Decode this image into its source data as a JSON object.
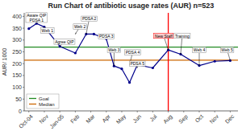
{
  "chart_data": {
    "type": "line",
    "title": "Run Chart of antibiotic usage rates (AUR) n=523",
    "y_label": "AUR/ 1000",
    "x": [
      0,
      0.5,
      1,
      2,
      3,
      3.7,
      4.2,
      5,
      5.5,
      6,
      6.5,
      7,
      8,
      9,
      9.8,
      11,
      12,
      13
    ],
    "values": [
      348,
      370,
      355,
      273,
      245,
      325,
      325,
      305,
      190,
      178,
      120,
      195,
      182,
      258,
      240,
      192,
      210,
      213
    ],
    "color": "#00008B",
    "marker": "circle",
    "xlim": [
      -0.3,
      13.5
    ],
    "xticks": [
      {
        "value": 0,
        "label": "Oct-04"
      },
      {
        "value": 1,
        "label": "Nov"
      },
      {
        "value": 2,
        "label": "Jan-05"
      },
      {
        "value": 3,
        "label": "Feb"
      },
      {
        "value": 4,
        "label": "Mar"
      },
      {
        "value": 5,
        "label": "Apr"
      },
      {
        "value": 6,
        "label": "May"
      },
      {
        "value": 7,
        "label": "Jun"
      },
      {
        "value": 8,
        "label": "Jul"
      },
      {
        "value": 9,
        "label": "Aug"
      },
      {
        "value": 10,
        "label": "Sep"
      },
      {
        "value": 11,
        "label": "Oct"
      },
      {
        "value": 12,
        "label": "Nov"
      },
      {
        "value": 13,
        "label": "Dec"
      }
    ],
    "ylim": [
      0,
      415
    ],
    "yticks": [
      0,
      50,
      100,
      150,
      200,
      250,
      300,
      350,
      400
    ],
    "grid": false,
    "legend": "lower left",
    "reference_lines": [
      {
        "name": "Goal",
        "value": 270,
        "color": "#228B22"
      },
      {
        "name": "Median",
        "value": 215,
        "color": "#CC6600"
      }
    ],
    "vertical_lines": [
      {
        "x": 9.0,
        "color": "red"
      }
    ],
    "annotations": [
      {
        "text": "Aware QIP\nPDSA 1",
        "text_x": 0.5,
        "text_y": 395,
        "x": 0.5,
        "y": 370
      },
      {
        "text": "Web 1",
        "text_x": 1.2,
        "text_y": 340,
        "x": 1.0,
        "y": 355
      },
      {
        "text": "Agree QIP",
        "text_x": 2.3,
        "text_y": 293,
        "x": 2.0,
        "y": 273
      },
      {
        "text": "Web 2",
        "text_x": 3.3,
        "text_y": 357,
        "x": 3.0,
        "y": 325
      },
      {
        "text": "PDSA 2",
        "text_x": 3.9,
        "text_y": 390,
        "x": 3.7,
        "y": 325
      },
      {
        "text": "PDSA 3",
        "text_x": 5.0,
        "text_y": 315,
        "x": 5.0,
        "y": 305
      },
      {
        "text": "Web 3",
        "text_x": 5.5,
        "text_y": 258,
        "x": 5.5,
        "y": 190
      },
      {
        "text": "PDSA 4",
        "text_x": 6.7,
        "text_y": 248,
        "x": 6.5,
        "y": 195
      },
      {
        "text": "PDSA 5",
        "text_x": 7.0,
        "text_y": 200,
        "x": 7.0,
        "y": 182
      },
      {
        "text": "New Staff",
        "text_x": 8.7,
        "text_y": 318,
        "x": 9.0,
        "y": 258,
        "color": "red"
      },
      {
        "text": "Training",
        "text_x": 9.9,
        "text_y": 318,
        "x": 9.8,
        "y": 240
      },
      {
        "text": "Web 4",
        "text_x": 11.0,
        "text_y": 258,
        "x": 11.0,
        "y": 192
      },
      {
        "text": "Web 5",
        "text_x": 12.8,
        "text_y": 258,
        "x": 13.0,
        "y": 213
      }
    ]
  }
}
